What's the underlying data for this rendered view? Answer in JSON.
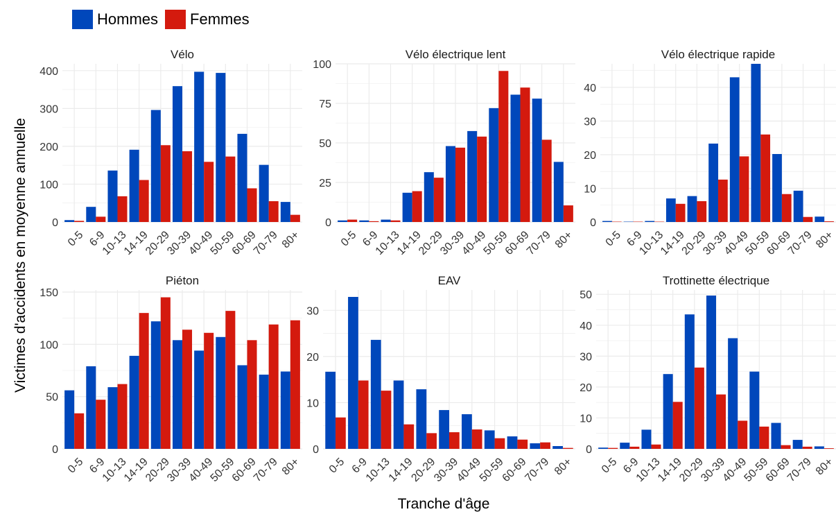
{
  "colors": {
    "hommes": "#0047BB",
    "femmes": "#D41A0E",
    "grid": "#EBEBEB"
  },
  "legend": {
    "hommes": "Hommes",
    "femmes": "Femmes"
  },
  "axis": {
    "xlabel": "Tranche d'âge",
    "ylabel": "Victimes d'accidents en moyenne annuelle"
  },
  "chart_data": [
    {
      "type": "bar",
      "title": "Vélo",
      "categories": [
        "0-5",
        "6-9",
        "10-13",
        "14-19",
        "20-29",
        "30-39",
        "40-49",
        "50-59",
        "60-69",
        "70-79",
        "80+"
      ],
      "series": [
        {
          "name": "Hommes",
          "values": [
            5,
            40,
            136,
            191,
            296,
            359,
            397,
            394,
            233,
            151,
            53
          ]
        },
        {
          "name": "Femmes",
          "values": [
            3,
            14,
            68,
            111,
            203,
            187,
            159,
            173,
            89,
            55,
            19
          ]
        }
      ],
      "yticks": [
        0,
        100,
        200,
        300,
        400
      ],
      "ylim": [
        0,
        418
      ]
    },
    {
      "type": "bar",
      "title": "Vélo électrique lent",
      "categories": [
        "0-5",
        "6-9",
        "10-13",
        "14-19",
        "20-29",
        "30-39",
        "40-49",
        "50-59",
        "60-69",
        "70-79",
        "80+"
      ],
      "series": [
        {
          "name": "Hommes",
          "values": [
            1,
            1,
            1.5,
            18.5,
            31.5,
            48,
            57.5,
            72,
            80.5,
            78,
            38
          ]
        },
        {
          "name": "Femmes",
          "values": [
            1.5,
            0.5,
            1,
            19.5,
            28,
            47,
            54,
            95.5,
            85,
            52,
            10.5
          ]
        }
      ],
      "yticks": [
        0,
        25,
        50,
        75,
        100
      ],
      "ylim": [
        0,
        100
      ]
    },
    {
      "type": "bar",
      "title": "Vélo électrique rapide",
      "categories": [
        "0-5",
        "6-9",
        "10-13",
        "14-19",
        "20-29",
        "30-39",
        "40-49",
        "50-59",
        "60-69",
        "70-79",
        "80+"
      ],
      "series": [
        {
          "name": "Hommes",
          "values": [
            0.3,
            0.1,
            0.3,
            7,
            7.7,
            23.3,
            43,
            47,
            20.2,
            9.3,
            1.6
          ]
        },
        {
          "name": "Femmes",
          "values": [
            0.1,
            0.1,
            0.1,
            5.4,
            6.2,
            12.6,
            19.5,
            26,
            8.3,
            1.5,
            0.2
          ]
        }
      ],
      "yticks": [
        0,
        10,
        20,
        30,
        40
      ],
      "ylim": [
        0,
        47
      ]
    },
    {
      "type": "bar",
      "title": "Piéton",
      "categories": [
        "0-5",
        "6-9",
        "10-13",
        "14-19",
        "20-29",
        "30-39",
        "40-49",
        "50-59",
        "60-69",
        "70-79",
        "80+"
      ],
      "series": [
        {
          "name": "Hommes",
          "values": [
            56,
            79,
            59,
            89,
            122,
            104,
            94,
            107,
            80,
            71,
            74
          ]
        },
        {
          "name": "Femmes",
          "values": [
            34,
            47,
            62,
            130,
            145,
            114,
            111,
            132,
            104,
            119,
            123
          ]
        }
      ],
      "yticks": [
        0,
        50,
        100,
        150
      ],
      "ylim": [
        0,
        152
      ]
    },
    {
      "type": "bar",
      "title": "EAV",
      "categories": [
        "0-5",
        "6-9",
        "10-13",
        "14-19",
        "20-29",
        "30-39",
        "40-49",
        "50-59",
        "60-69",
        "70-79",
        "80+"
      ],
      "series": [
        {
          "name": "Hommes",
          "values": [
            16.7,
            32.9,
            23.6,
            14.8,
            12.9,
            8.4,
            7.5,
            4,
            2.7,
            1.2,
            0.6
          ]
        },
        {
          "name": "Femmes",
          "values": [
            6.8,
            14.8,
            12.6,
            5.3,
            3.4,
            3.6,
            4.2,
            2.3,
            2,
            1.4,
            0.2
          ]
        }
      ],
      "yticks": [
        0,
        10,
        20,
        30
      ],
      "ylim": [
        0,
        34.4
      ]
    },
    {
      "type": "bar",
      "title": "Trottinette électrique",
      "categories": [
        "0-5",
        "6-9",
        "10-13",
        "14-19",
        "20-29",
        "30-39",
        "40-49",
        "50-59",
        "60-69",
        "70-79",
        "80+"
      ],
      "series": [
        {
          "name": "Hommes",
          "values": [
            0.4,
            2,
            6.2,
            24.2,
            43.5,
            49.6,
            35.8,
            25,
            8.4,
            2.9,
            0.8
          ]
        },
        {
          "name": "Femmes",
          "values": [
            0.3,
            0.7,
            1.4,
            15.2,
            26.3,
            17.6,
            9.1,
            7.2,
            1.2,
            0.7,
            0.2
          ]
        }
      ],
      "yticks": [
        0,
        10,
        20,
        30,
        40,
        50
      ],
      "ylim": [
        0,
        51.4
      ]
    }
  ]
}
